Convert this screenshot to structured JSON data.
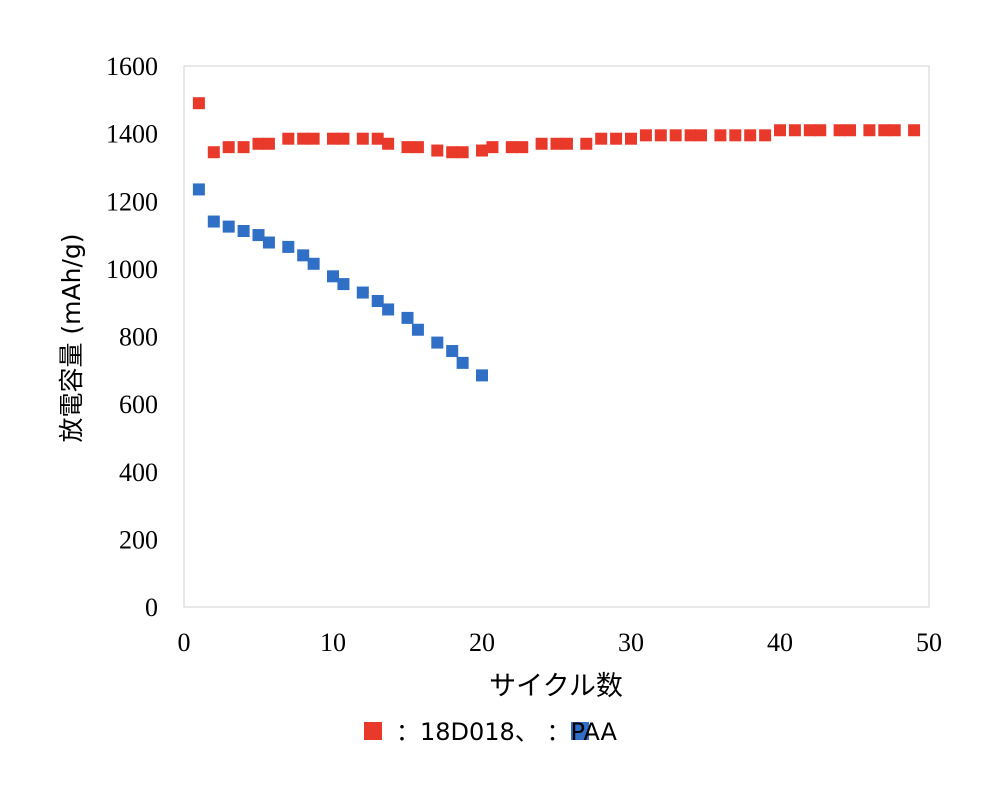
{
  "chart_data": {
    "type": "scatter",
    "title": "",
    "xlabel": "サイクル数",
    "ylabel": "放電容量 (mAh/g)",
    "xlim": [
      0,
      50
    ],
    "ylim": [
      0,
      1600
    ],
    "xticks": [
      0,
      10,
      20,
      30,
      40,
      50
    ],
    "yticks": [
      0,
      200,
      400,
      600,
      800,
      1000,
      1200,
      1400,
      1600
    ],
    "grid": false,
    "legend_text": "：18D018、 ：PAA",
    "legend_placement": "bottom",
    "series": [
      {
        "name": "18D018",
        "color": "#e8392b",
        "marker": "square",
        "x": [
          1,
          2,
          3,
          4,
          5,
          5.7,
          7,
          8,
          8.7,
          10,
          10.7,
          12,
          13,
          13.7,
          15,
          15.7,
          17,
          18,
          18.7,
          20,
          20.7,
          22,
          22.7,
          24,
          25,
          25.7,
          27,
          28,
          29,
          30,
          31,
          32,
          33,
          34,
          34.7,
          36,
          37,
          38,
          39,
          40,
          41,
          42,
          42.7,
          44,
          44.7,
          46,
          47,
          47.7,
          49
        ],
        "y": [
          1490,
          1345,
          1360,
          1360,
          1370,
          1370,
          1385,
          1385,
          1385,
          1385,
          1385,
          1385,
          1385,
          1370,
          1360,
          1360,
          1350,
          1345,
          1345,
          1350,
          1360,
          1360,
          1360,
          1370,
          1370,
          1370,
          1370,
          1385,
          1385,
          1385,
          1395,
          1395,
          1395,
          1395,
          1395,
          1395,
          1395,
          1395,
          1395,
          1410,
          1410,
          1410,
          1410,
          1410,
          1410,
          1410,
          1410,
          1410,
          1410
        ]
      },
      {
        "name": "PAA",
        "color": "#2f6fc6",
        "marker": "square",
        "x": [
          1,
          2,
          3,
          4,
          5,
          5.7,
          7,
          8,
          8.7,
          10,
          10.7,
          12,
          13,
          13.7,
          15,
          15.7,
          17,
          18,
          18.7,
          20
        ],
        "y": [
          1235,
          1140,
          1125,
          1112,
          1100,
          1078,
          1065,
          1040,
          1015,
          978,
          955,
          930,
          905,
          880,
          855,
          820,
          782,
          757,
          722,
          685
        ]
      }
    ]
  }
}
